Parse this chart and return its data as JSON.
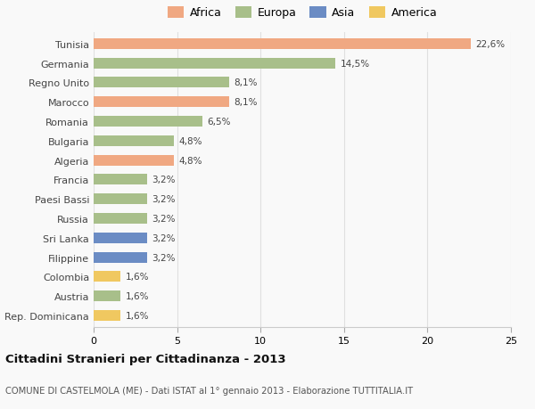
{
  "countries": [
    "Tunisia",
    "Germania",
    "Regno Unito",
    "Marocco",
    "Romania",
    "Bulgaria",
    "Algeria",
    "Francia",
    "Paesi Bassi",
    "Russia",
    "Sri Lanka",
    "Filippine",
    "Colombia",
    "Austria",
    "Rep. Dominicana"
  ],
  "values": [
    22.6,
    14.5,
    8.1,
    8.1,
    6.5,
    4.8,
    4.8,
    3.2,
    3.2,
    3.2,
    3.2,
    3.2,
    1.6,
    1.6,
    1.6
  ],
  "labels": [
    "22,6%",
    "14,5%",
    "8,1%",
    "8,1%",
    "6,5%",
    "4,8%",
    "4,8%",
    "3,2%",
    "3,2%",
    "3,2%",
    "3,2%",
    "3,2%",
    "1,6%",
    "1,6%",
    "1,6%"
  ],
  "continents": [
    "Africa",
    "Europa",
    "Europa",
    "Africa",
    "Europa",
    "Europa",
    "Africa",
    "Europa",
    "Europa",
    "Europa",
    "Asia",
    "Asia",
    "America",
    "Europa",
    "America"
  ],
  "colors": {
    "Africa": "#F0A882",
    "Europa": "#A8BF8A",
    "Asia": "#6B8CC4",
    "America": "#F0C860"
  },
  "legend_order": [
    "Africa",
    "Europa",
    "Asia",
    "America"
  ],
  "xlim": [
    0,
    25
  ],
  "xticks": [
    0,
    5,
    10,
    15,
    20,
    25
  ],
  "title": "Cittadini Stranieri per Cittadinanza - 2013",
  "subtitle": "COMUNE DI CASTELMOLA (ME) - Dati ISTAT al 1° gennaio 2013 - Elaborazione TUTTITALIA.IT",
  "bg_color": "#f9f9f9",
  "grid_color": "#e0e0e0",
  "bar_height": 0.55
}
